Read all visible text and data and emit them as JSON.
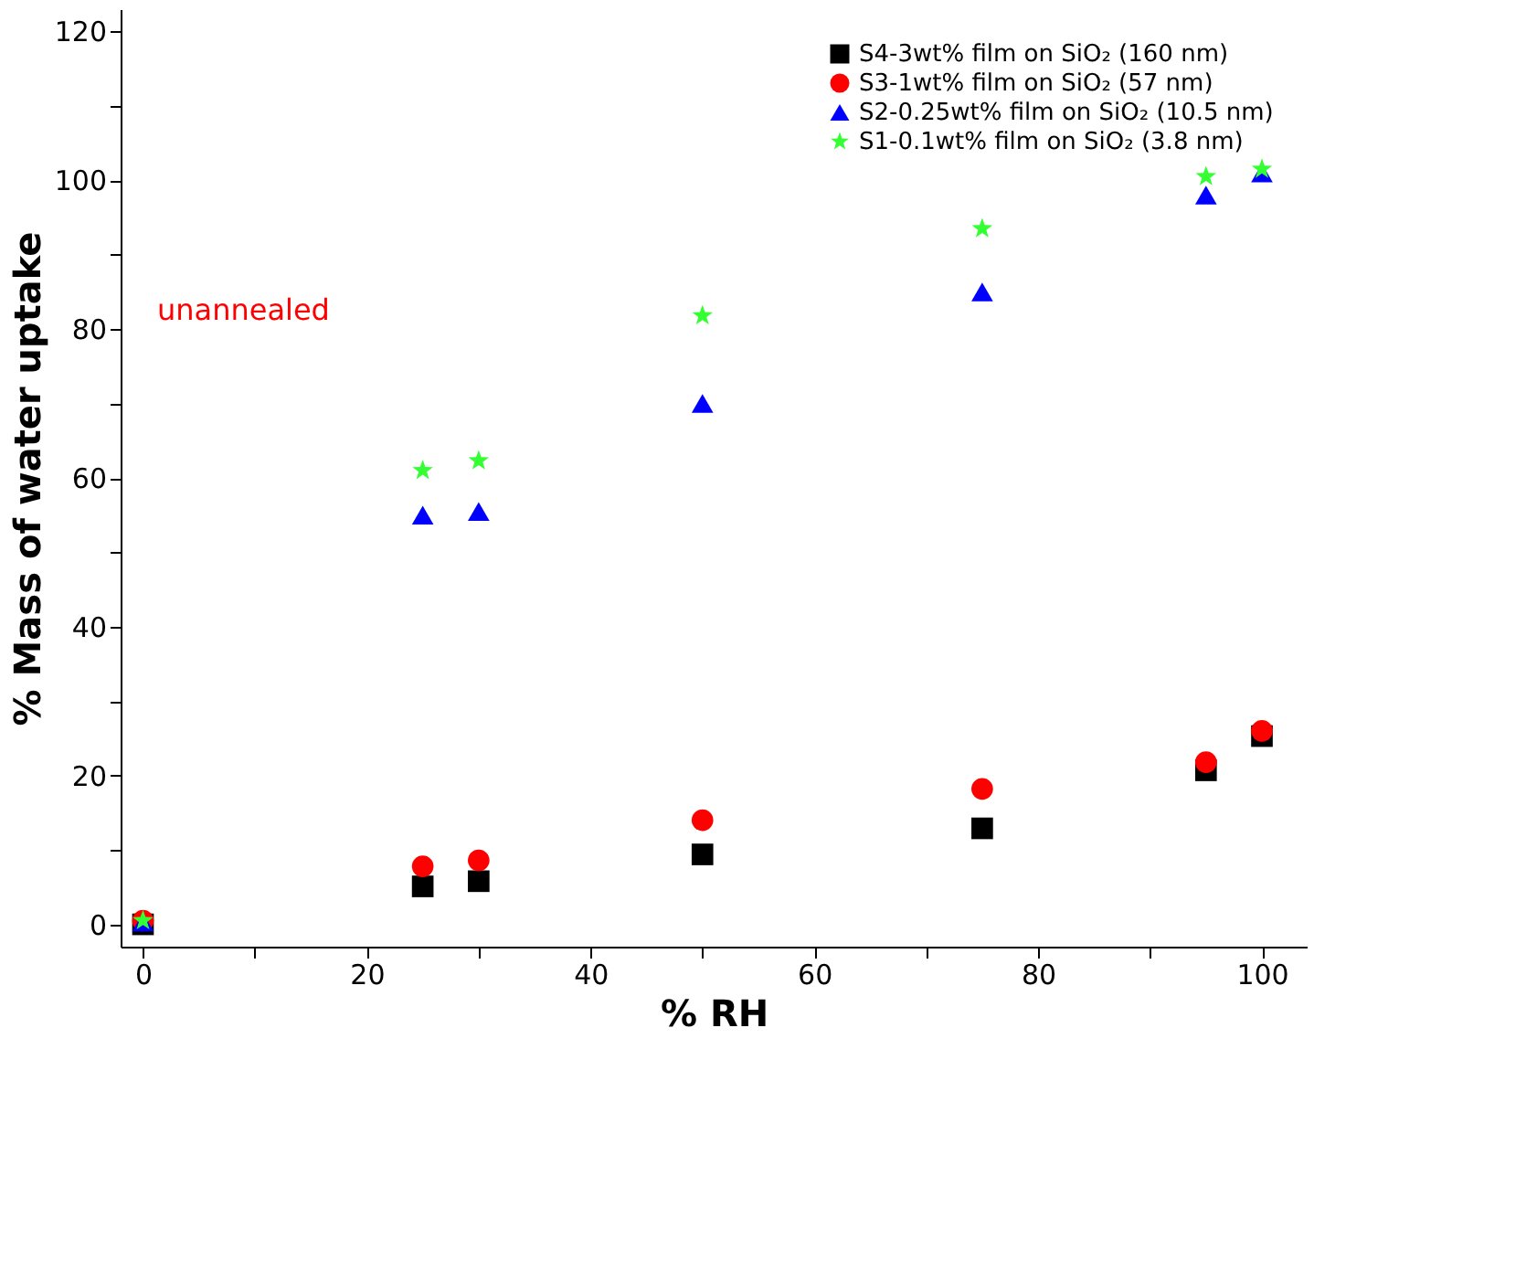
{
  "chart_data": {
    "type": "scatter",
    "xlabel": "% RH",
    "ylabel": "% Mass of water uptake",
    "x": [
      0,
      25,
      30,
      50,
      75,
      95,
      100
    ],
    "series": [
      {
        "name": "S4-3wt% film on SiO₂ (160 nm)",
        "color": "#000000",
        "marker": "square",
        "values": [
          0,
          5.1,
          5.8,
          9.4,
          12.9,
          20.7,
          25.3
        ]
      },
      {
        "name": "S3-1wt% film on SiO₂ (57 nm)",
        "color": "#ff0000",
        "marker": "circle",
        "values": [
          0.5,
          7.8,
          8.6,
          14,
          18.2,
          21.8,
          26
        ]
      },
      {
        "name": "S2-0.25wt% film on SiO₂ (10.5 nm)",
        "color": "#0000ff",
        "marker": "triangle",
        "values": [
          0.3,
          55,
          55.5,
          70,
          85,
          98,
          101
        ]
      },
      {
        "name": "S1-0.1wt% film on SiO₂ (3.8 nm)",
        "color": "#33ff33",
        "marker": "star",
        "values": [
          0.5,
          61,
          62.3,
          81.8,
          93.5,
          100.5,
          101.5
        ]
      }
    ],
    "annotations": [
      "unannealed"
    ],
    "xlim": [
      -2,
      104
    ],
    "ylim": [
      -3,
      123
    ],
    "xticks": [
      0,
      {
        "value": 10,
        "label": null
      },
      20,
      {
        "value": 30,
        "label": null
      },
      40,
      {
        "value": 50,
        "label": null
      },
      60,
      {
        "value": 70,
        "label": null
      },
      80,
      {
        "value": 90,
        "label": null
      },
      100
    ],
    "yticks": [
      0,
      {
        "value": 10,
        "label": null
      },
      20,
      {
        "value": 30,
        "label": null
      },
      40,
      {
        "value": 50,
        "label": null
      },
      60,
      {
        "value": 70,
        "label": null
      },
      80,
      {
        "value": 90,
        "label": null
      },
      100,
      {
        "value": 110,
        "label": null
      },
      120
    ],
    "grid": false,
    "legend": "top right"
  }
}
